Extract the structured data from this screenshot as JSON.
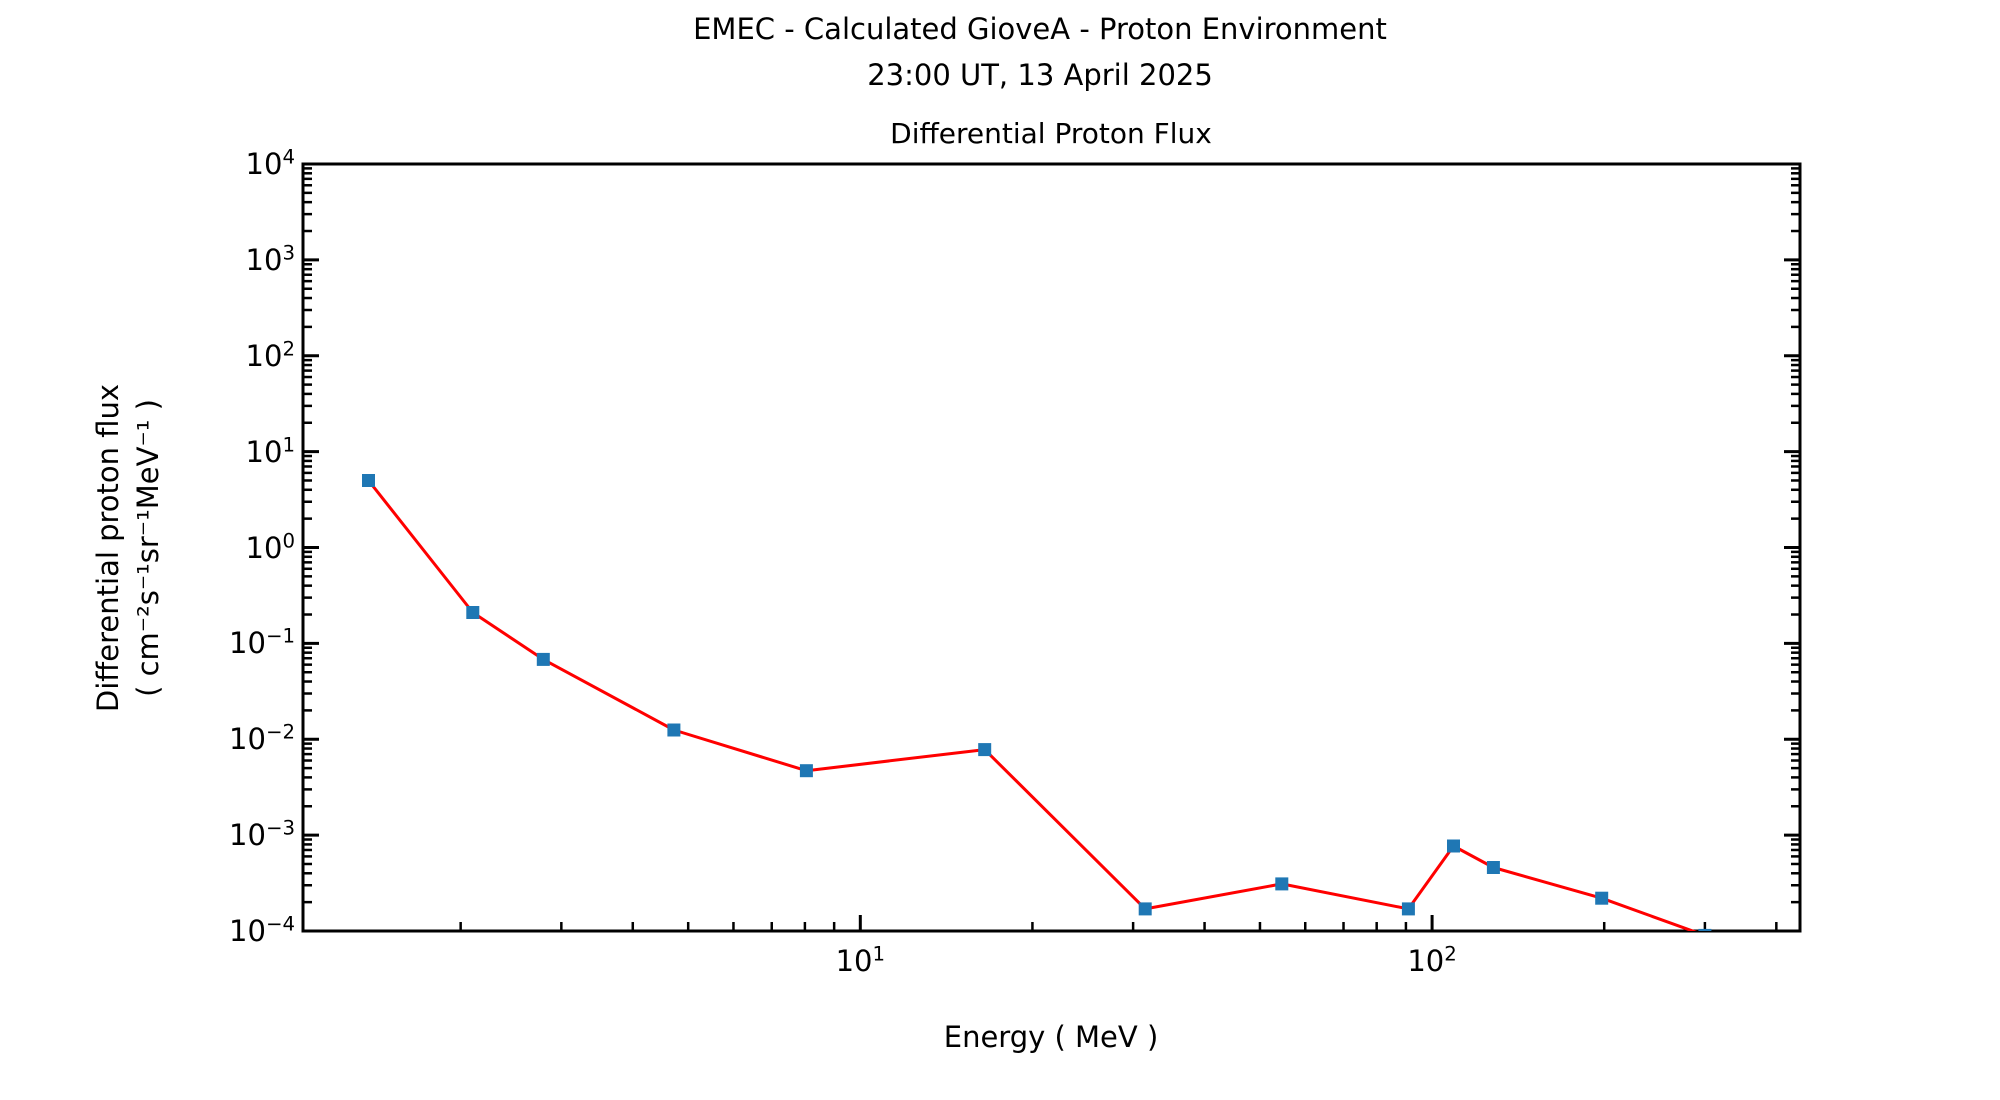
{
  "page": {
    "background_color": "#ffffff",
    "text_color": "#000000"
  },
  "header": {
    "suptitle_line1": "EMEC - Calculated GioveA - Proton Environment",
    "suptitle_line2": "23:00 UT, 13 April 2025"
  },
  "chart_data": {
    "type": "line",
    "title": "Differential Proton Flux",
    "xlabel": "Energy ( MeV )",
    "ylabel_line1": "Differential proton flux",
    "ylabel_line2": "( cm⁻²s⁻¹sr⁻¹MeV⁻¹ )",
    "x_scale": "log",
    "y_scale": "log",
    "xlim": [
      1.06,
      440
    ],
    "ylim": [
      0.0001,
      10000
    ],
    "grid": false,
    "legend": false,
    "series": [
      {
        "name": "Differential proton flux",
        "x": [
          1.38,
          2.1,
          2.79,
          4.72,
          8.05,
          16.5,
          31.5,
          54.6,
          90.9,
          109,
          128,
          198,
          300
        ],
        "y": [
          5.0,
          0.21,
          0.068,
          0.0125,
          0.0047,
          0.0078,
          0.00017,
          0.00031,
          0.00017,
          0.00077,
          0.00046,
          0.00022,
          9e-05
        ],
        "line_color": "#ff0000",
        "marker": "square",
        "marker_color": "#1f77b4"
      }
    ],
    "x_major_ticks": [
      {
        "value": 10,
        "base": "10",
        "exp": "1"
      },
      {
        "value": 100,
        "base": "10",
        "exp": "2"
      }
    ],
    "y_major_ticks": [
      {
        "value": 10000,
        "base": "10",
        "exp": "4"
      },
      {
        "value": 1000,
        "base": "10",
        "exp": "3"
      },
      {
        "value": 100,
        "base": "10",
        "exp": "2"
      },
      {
        "value": 10,
        "base": "10",
        "exp": "1"
      },
      {
        "value": 1,
        "base": "10",
        "exp": "0"
      },
      {
        "value": 0.1,
        "base": "10",
        "exp": "−1"
      },
      {
        "value": 0.01,
        "base": "10",
        "exp": "−2"
      },
      {
        "value": 0.001,
        "base": "10",
        "exp": "−3"
      },
      {
        "value": 0.0001,
        "base": "10",
        "exp": "−4"
      }
    ],
    "axis_color": "#000000"
  }
}
